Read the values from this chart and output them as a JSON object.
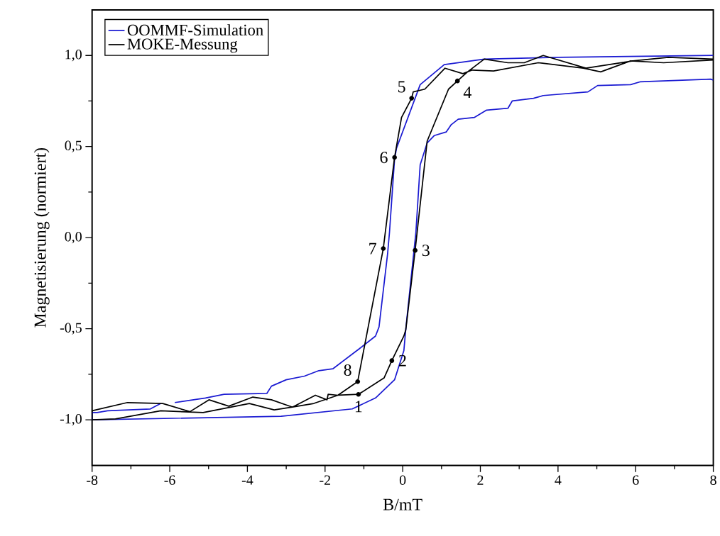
{
  "chart_data": {
    "type": "line",
    "xlabel": "B/mT",
    "ylabel": "Magnetisierung (normiert)",
    "xlim": [
      -8,
      8
    ],
    "xticks": [
      -8,
      -6,
      -4,
      -2,
      0,
      2,
      4,
      6,
      8
    ],
    "ylim": [
      -1.25,
      1.25
    ],
    "yticks": [
      {
        "value": -1,
        "label": "-1,0"
      },
      {
        "value": -0.5,
        "label": "-0,5"
      },
      {
        "value": 0,
        "label": "0,0"
      },
      {
        "value": 0.5,
        "label": "0,5"
      },
      {
        "value": 1,
        "label": "1,0"
      }
    ],
    "grid": false,
    "legend": "top left",
    "marker": "none",
    "line_style": "solid",
    "series": [
      {
        "name": "OOMMF-Simulation",
        "color": "#1a1ad2",
        "x": [
          8,
          6,
          4,
          2.1,
          1.07,
          0.45,
          -0.16,
          -0.21,
          -0.34,
          -0.39,
          -0.61,
          -0.7,
          -1.12,
          -1.8,
          -2.16,
          -2.53,
          -3.0,
          -3.38,
          -3.5,
          -4.6,
          -5.08,
          -5.87,
          -6.05,
          -6.23,
          -6.5,
          -7.6,
          -7.87,
          -8,
          -8,
          -3.13,
          -1.3,
          -0.7,
          -0.21,
          0.03,
          0.08,
          0.34,
          0.45,
          0.63,
          0.81,
          1.12,
          1.25,
          1.43,
          1.85,
          2.16,
          2.71,
          2.82,
          3.37,
          3.62,
          4.77,
          5.02,
          5.87,
          6.11,
          7.93,
          8
        ],
        "values": [
          1.0,
          0.995,
          0.99,
          0.98,
          0.95,
          0.84,
          0.49,
          0.43,
          0.03,
          -0.09,
          -0.49,
          -0.54,
          -0.61,
          -0.72,
          -0.73,
          -0.76,
          -0.78,
          -0.815,
          -0.855,
          -0.86,
          -0.88,
          -0.905,
          null,
          -0.91,
          -0.94,
          -0.95,
          -0.96,
          -0.96,
          -1.0,
          -0.98,
          -0.94,
          -0.88,
          -0.78,
          -0.62,
          -0.5,
          0.03,
          0.4,
          0.52,
          0.56,
          0.58,
          0.62,
          0.65,
          0.66,
          0.7,
          0.71,
          0.75,
          0.765,
          0.78,
          0.8,
          0.835,
          0.84,
          0.855,
          0.87,
          0.865
        ]
      },
      {
        "name": "MOKE-Messung",
        "color": "#000000",
        "x": [
          8,
          6.72,
          5.87,
          5.1,
          4.65,
          3.49,
          2.34,
          1.79,
          1.55,
          1.09,
          0.57,
          0.27,
          0.23,
          -0.03,
          -0.21,
          -0.5,
          -1.16,
          -1.67,
          -2.29,
          -2.84,
          -3.31,
          -3.95,
          -5.14,
          -6.23,
          -7.4,
          -8,
          -8,
          -7.09,
          -6.18,
          -5.48,
          -4.99,
          -4.48,
          -3.86,
          -3.38,
          -2.84,
          -2.25,
          -1.95,
          -1.92,
          -1.67,
          -1.14,
          -0.48,
          -0.28,
          0.03,
          0.08,
          0.32,
          0.63,
          1.18,
          1.41,
          1.67,
          2.1,
          2.71,
          3.13,
          3.62,
          4.72,
          5.93,
          6.84,
          8
        ],
        "values": [
          0.975,
          0.96,
          0.97,
          0.91,
          0.93,
          0.96,
          0.915,
          0.92,
          0.9,
          0.93,
          0.815,
          0.8,
          0.765,
          0.66,
          0.44,
          -0.06,
          -0.79,
          -0.865,
          -0.91,
          -0.93,
          -0.945,
          -0.91,
          -0.96,
          -0.95,
          -0.995,
          -1.0,
          -0.95,
          -0.905,
          -0.91,
          -0.955,
          -0.89,
          -0.925,
          -0.875,
          -0.89,
          -0.93,
          -0.865,
          -0.89,
          -0.86,
          -0.865,
          -0.86,
          -0.77,
          -0.675,
          -0.54,
          -0.505,
          -0.07,
          0.53,
          0.815,
          0.86,
          0.91,
          0.98,
          0.96,
          0.96,
          1.0,
          0.93,
          0.97,
          0.99,
          0.98
        ]
      }
    ],
    "annotations": [
      {
        "text": "1",
        "x": -1.14,
        "y": -0.86
      },
      {
        "text": "2",
        "x": -0.28,
        "y": -0.675
      },
      {
        "text": "3",
        "x": 0.32,
        "y": -0.07
      },
      {
        "text": "4",
        "x": 1.41,
        "y": 0.86
      },
      {
        "text": "5",
        "x": 0.23,
        "y": 0.765
      },
      {
        "text": "6",
        "x": -0.21,
        "y": 0.44
      },
      {
        "text": "7",
        "x": -0.5,
        "y": -0.06
      },
      {
        "text": "8",
        "x": -1.16,
        "y": -0.79
      }
    ]
  }
}
